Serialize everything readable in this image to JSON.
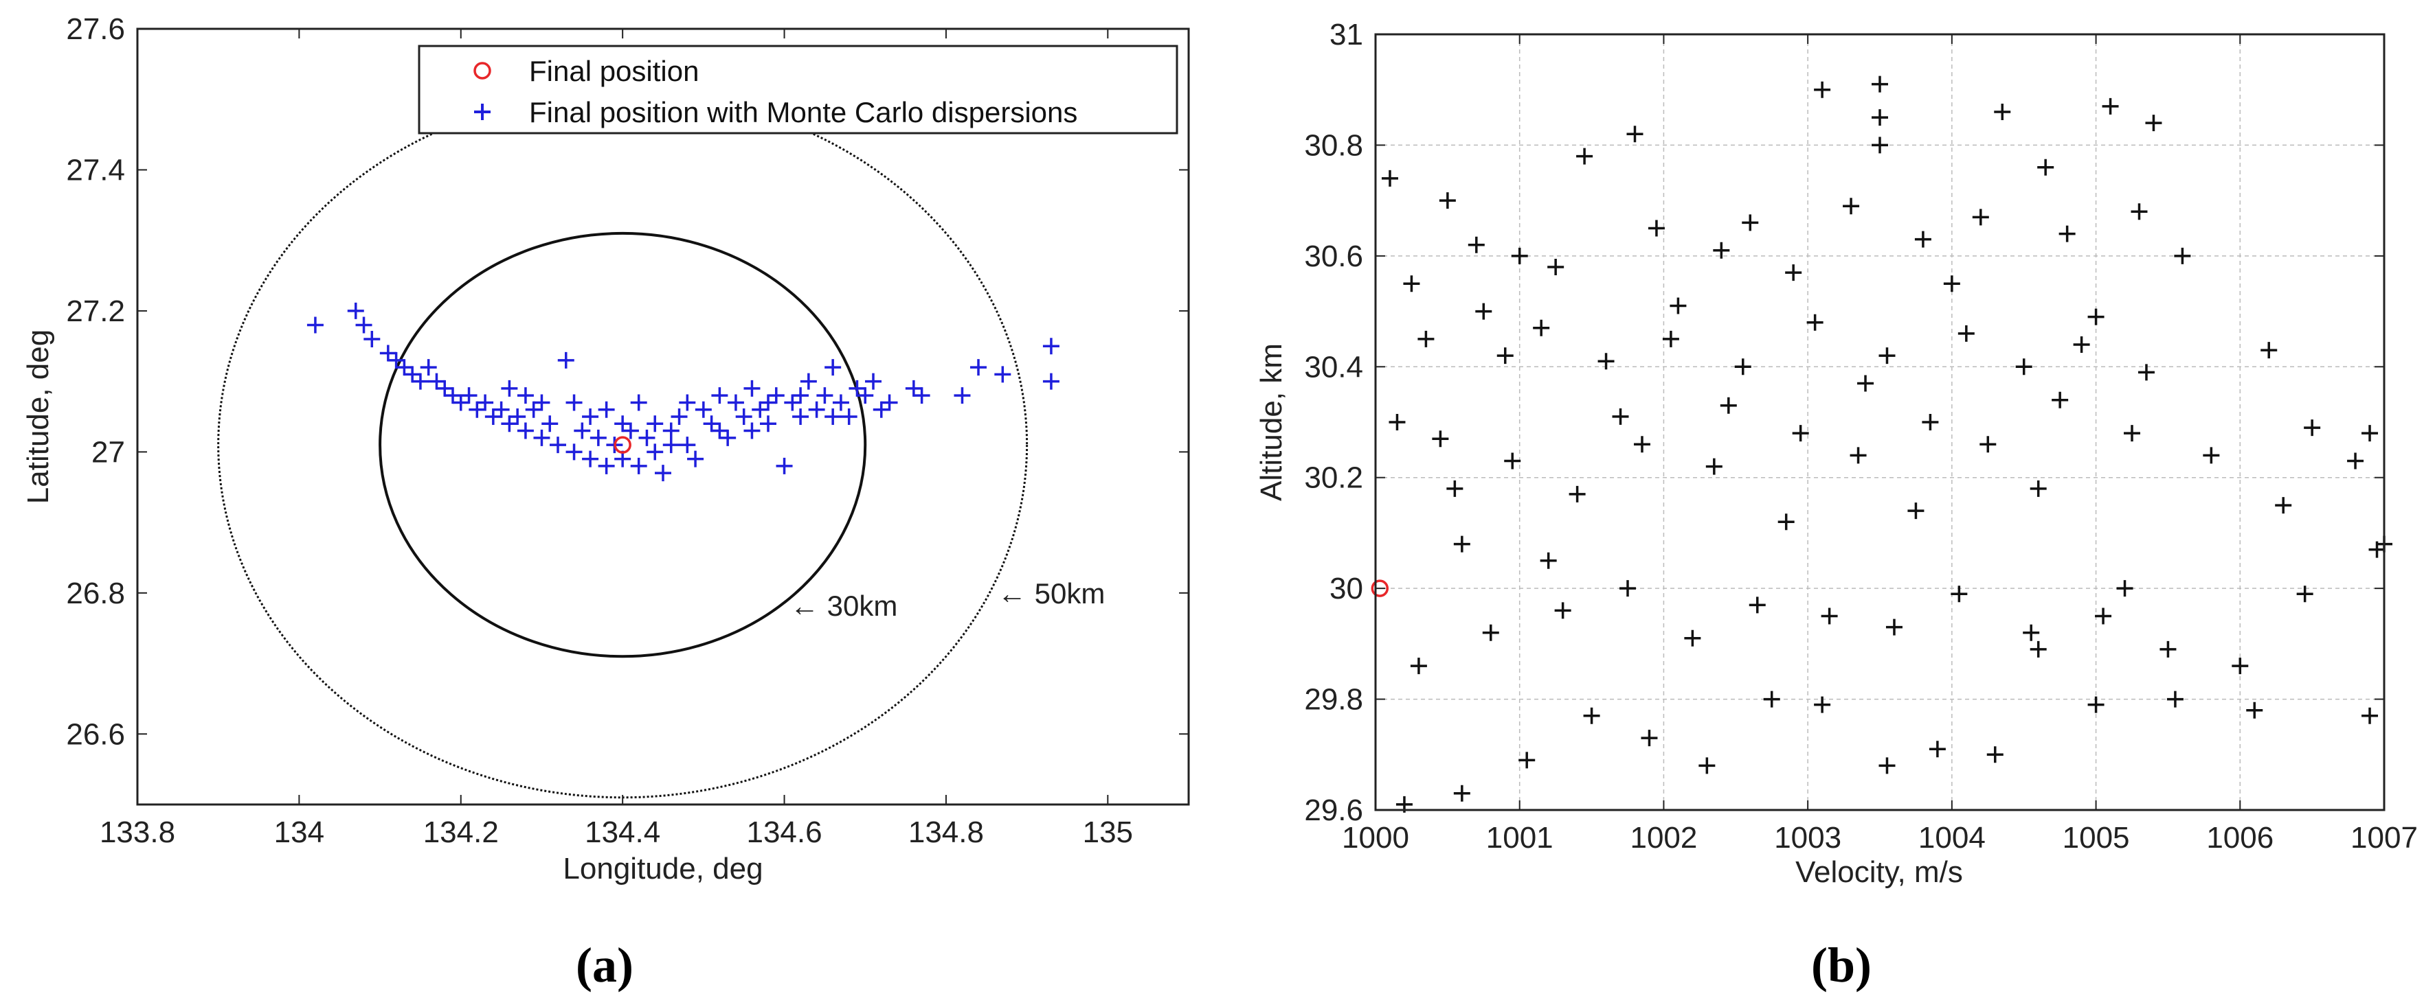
{
  "chart_data": [
    {
      "type": "scatter",
      "panel_label": "(a)",
      "xlabel": "Longitude, deg",
      "ylabel": "Latitude, deg",
      "xlim": [
        133.8,
        135.1
      ],
      "ylim": [
        26.5,
        27.6
      ],
      "xticks": [
        "133.8",
        "134",
        "134.2",
        "134.4",
        "134.6",
        "134.8",
        "135"
      ],
      "yticks": [
        "26.6",
        "26.8",
        "27",
        "27.2",
        "27.4",
        "27.6"
      ],
      "grid": false,
      "legend": {
        "placement": "top",
        "entries": [
          "Final position",
          "Final position with Monte Carlo dispersions"
        ]
      },
      "colors": {
        "final": "#e8272a",
        "dispersion": "#1f1fdc",
        "circles": "#111111"
      },
      "series": [
        {
          "name": "Final position",
          "marker": "circle",
          "x": [
            134.4
          ],
          "y": [
            27.01
          ]
        },
        {
          "name": "Final position with Monte Carlo dispersions",
          "marker": "plus",
          "points": [
            [
              134.02,
              27.18
            ],
            [
              134.07,
              27.2
            ],
            [
              134.08,
              27.18
            ],
            [
              134.09,
              27.16
            ],
            [
              134.11,
              27.14
            ],
            [
              134.12,
              27.13
            ],
            [
              134.13,
              27.12
            ],
            [
              134.14,
              27.11
            ],
            [
              134.15,
              27.1
            ],
            [
              134.16,
              27.12
            ],
            [
              134.17,
              27.1
            ],
            [
              134.18,
              27.09
            ],
            [
              134.19,
              27.08
            ],
            [
              134.2,
              27.07
            ],
            [
              134.21,
              27.08
            ],
            [
              134.22,
              27.06
            ],
            [
              134.23,
              27.07
            ],
            [
              134.24,
              27.05
            ],
            [
              134.25,
              27.06
            ],
            [
              134.26,
              27.04
            ],
            [
              134.27,
              27.05
            ],
            [
              134.28,
              27.03
            ],
            [
              134.29,
              27.06
            ],
            [
              134.3,
              27.02
            ],
            [
              134.31,
              27.04
            ],
            [
              134.32,
              27.01
            ],
            [
              134.33,
              27.13
            ],
            [
              134.34,
              27.0
            ],
            [
              134.35,
              27.03
            ],
            [
              134.36,
              26.99
            ],
            [
              134.37,
              27.02
            ],
            [
              134.38,
              26.98
            ],
            [
              134.39,
              27.01
            ],
            [
              134.4,
              26.99
            ],
            [
              134.41,
              27.03
            ],
            [
              134.42,
              26.98
            ],
            [
              134.43,
              27.02
            ],
            [
              134.44,
              27.0
            ],
            [
              134.45,
              26.97
            ],
            [
              134.46,
              27.03
            ],
            [
              134.47,
              27.05
            ],
            [
              134.48,
              27.01
            ],
            [
              134.49,
              26.99
            ],
            [
              134.5,
              27.06
            ],
            [
              134.51,
              27.04
            ],
            [
              134.52,
              27.08
            ],
            [
              134.53,
              27.02
            ],
            [
              134.54,
              27.07
            ],
            [
              134.55,
              27.05
            ],
            [
              134.56,
              27.09
            ],
            [
              134.57,
              27.06
            ],
            [
              134.58,
              27.04
            ],
            [
              134.59,
              27.08
            ],
            [
              134.6,
              26.98
            ],
            [
              134.61,
              27.07
            ],
            [
              134.62,
              27.05
            ],
            [
              134.63,
              27.1
            ],
            [
              134.64,
              27.06
            ],
            [
              134.65,
              27.08
            ],
            [
              134.66,
              27.12
            ],
            [
              134.67,
              27.07
            ],
            [
              134.68,
              27.05
            ],
            [
              134.69,
              27.09
            ],
            [
              134.7,
              27.08
            ],
            [
              134.71,
              27.1
            ],
            [
              134.72,
              27.06
            ],
            [
              134.73,
              27.07
            ],
            [
              134.76,
              27.09
            ],
            [
              134.77,
              27.08
            ],
            [
              134.82,
              27.08
            ],
            [
              134.84,
              27.12
            ],
            [
              134.87,
              27.11
            ],
            [
              134.93,
              27.15
            ],
            [
              134.93,
              27.1
            ],
            [
              134.36,
              27.05
            ],
            [
              134.38,
              27.06
            ],
            [
              134.4,
              27.04
            ],
            [
              134.42,
              27.07
            ],
            [
              134.44,
              27.04
            ],
            [
              134.46,
              27.01
            ],
            [
              134.3,
              27.07
            ],
            [
              134.28,
              27.08
            ],
            [
              134.26,
              27.09
            ],
            [
              134.34,
              27.07
            ],
            [
              134.52,
              27.03
            ],
            [
              134.56,
              27.03
            ],
            [
              134.48,
              27.07
            ],
            [
              134.62,
              27.08
            ],
            [
              134.58,
              27.07
            ],
            [
              134.66,
              27.05
            ]
          ]
        }
      ],
      "circles": [
        {
          "label": "30km",
          "center": [
            134.4,
            27.01
          ],
          "radius_deg_lon": 0.3,
          "radius_deg_lat": 0.3,
          "style": "solid"
        },
        {
          "label": "50km",
          "center": [
            134.4,
            27.01
          ],
          "radius_deg_lon": 0.5,
          "radius_deg_lat": 0.5,
          "style": "dotted"
        }
      ],
      "annotations": [
        "← 30km",
        "← 50km"
      ]
    },
    {
      "type": "scatter",
      "panel_label": "(b)",
      "xlabel": "Velocity, m/s",
      "ylabel": "Altitude, km",
      "xlim": [
        1000,
        1007
      ],
      "ylim": [
        29.6,
        31
      ],
      "xticks": [
        "1000",
        "1001",
        "1002",
        "1003",
        "1004",
        "1005",
        "1006",
        "1007"
      ],
      "yticks": [
        "29.6",
        "29.8",
        "30",
        "30.2",
        "30.4",
        "30.6",
        "30.8",
        "31"
      ],
      "grid": true,
      "colors": {
        "final": "#e8272a",
        "dispersion": "#111111"
      },
      "series": [
        {
          "name": "Final position",
          "marker": "circle",
          "x": [
            1000.03
          ],
          "y": [
            30.0
          ]
        },
        {
          "name": "Final position with Monte Carlo dispersions",
          "marker": "plus",
          "points": [
            [
              1000.1,
              30.74
            ],
            [
              1000.25,
              30.55
            ],
            [
              1000.45,
              30.27
            ],
            [
              1000.6,
              30.08
            ],
            [
              1000.9,
              30.42
            ],
            [
              1001.2,
              30.05
            ],
            [
              1001.45,
              30.78
            ],
            [
              1001.7,
              30.31
            ],
            [
              1001.8,
              30.82
            ],
            [
              1002.1,
              30.51
            ],
            [
              1002.35,
              30.22
            ],
            [
              1002.6,
              30.66
            ],
            [
              1002.85,
              30.12
            ],
            [
              1003.1,
              30.9
            ],
            [
              1003.5,
              30.91
            ],
            [
              1003.5,
              30.85
            ],
            [
              1003.5,
              30.8
            ],
            [
              1003.4,
              30.37
            ],
            [
              1003.75,
              30.14
            ],
            [
              1004.0,
              30.55
            ],
            [
              1004.35,
              30.86
            ],
            [
              1004.6,
              30.18
            ],
            [
              1004.65,
              30.76
            ],
            [
              1004.9,
              30.44
            ],
            [
              1005.1,
              30.87
            ],
            [
              1005.4,
              30.84
            ],
            [
              1005.2,
              30.0
            ],
            [
              1005.6,
              30.6
            ],
            [
              1005.8,
              30.24
            ],
            [
              1006.2,
              30.43
            ],
            [
              1006.1,
              29.78
            ],
            [
              1006.3,
              30.15
            ],
            [
              1006.5,
              30.29
            ],
            [
              1006.8,
              30.23
            ],
            [
              1006.9,
              30.28
            ],
            [
              1006.95,
              30.07
            ],
            [
              1007.0,
              30.08
            ],
            [
              1006.9,
              29.77
            ],
            [
              1006.45,
              29.99
            ],
            [
              1006.0,
              29.86
            ],
            [
              1005.55,
              29.8
            ],
            [
              1005.0,
              29.79
            ],
            [
              1004.6,
              29.89
            ],
            [
              1004.3,
              29.7
            ],
            [
              1003.9,
              29.71
            ],
            [
              1003.55,
              29.68
            ],
            [
              1003.1,
              29.79
            ],
            [
              1002.75,
              29.8
            ],
            [
              1002.3,
              29.68
            ],
            [
              1001.9,
              29.73
            ],
            [
              1001.5,
              29.77
            ],
            [
              1001.05,
              29.69
            ],
            [
              1000.6,
              29.63
            ],
            [
              1000.2,
              29.61
            ],
            [
              1000.3,
              29.86
            ],
            [
              1000.8,
              29.92
            ],
            [
              1001.3,
              29.96
            ],
            [
              1001.75,
              30.0
            ],
            [
              1002.2,
              29.91
            ],
            [
              1002.65,
              29.97
            ],
            [
              1003.15,
              29.95
            ],
            [
              1003.6,
              29.93
            ],
            [
              1004.05,
              29.99
            ],
            [
              1004.55,
              29.92
            ],
            [
              1005.05,
              29.95
            ],
            [
              1005.5,
              29.89
            ],
            [
              1000.15,
              30.3
            ],
            [
              1000.55,
              30.18
            ],
            [
              1000.95,
              30.23
            ],
            [
              1001.4,
              30.17
            ],
            [
              1001.85,
              30.26
            ],
            [
              1002.45,
              30.33
            ],
            [
              1002.95,
              30.28
            ],
            [
              1003.35,
              30.24
            ],
            [
              1003.85,
              30.3
            ],
            [
              1004.25,
              30.26
            ],
            [
              1004.75,
              30.34
            ],
            [
              1005.25,
              30.28
            ],
            [
              1000.35,
              30.45
            ],
            [
              1000.75,
              30.5
            ],
            [
              1001.15,
              30.47
            ],
            [
              1001.6,
              30.41
            ],
            [
              1002.05,
              30.45
            ],
            [
              1002.55,
              30.4
            ],
            [
              1003.05,
              30.48
            ],
            [
              1003.55,
              30.42
            ],
            [
              1004.1,
              30.46
            ],
            [
              1004.5,
              30.4
            ],
            [
              1005.0,
              30.49
            ],
            [
              1005.35,
              30.39
            ],
            [
              1000.7,
              30.62
            ],
            [
              1001.25,
              30.58
            ],
            [
              1001.95,
              30.65
            ],
            [
              1002.4,
              30.61
            ],
            [
              1002.9,
              30.57
            ],
            [
              1003.3,
              30.69
            ],
            [
              1003.8,
              30.63
            ],
            [
              1004.2,
              30.67
            ],
            [
              1004.8,
              30.64
            ],
            [
              1005.3,
              30.68
            ],
            [
              1000.5,
              30.7
            ],
            [
              1001.0,
              30.6
            ]
          ]
        }
      ]
    }
  ]
}
